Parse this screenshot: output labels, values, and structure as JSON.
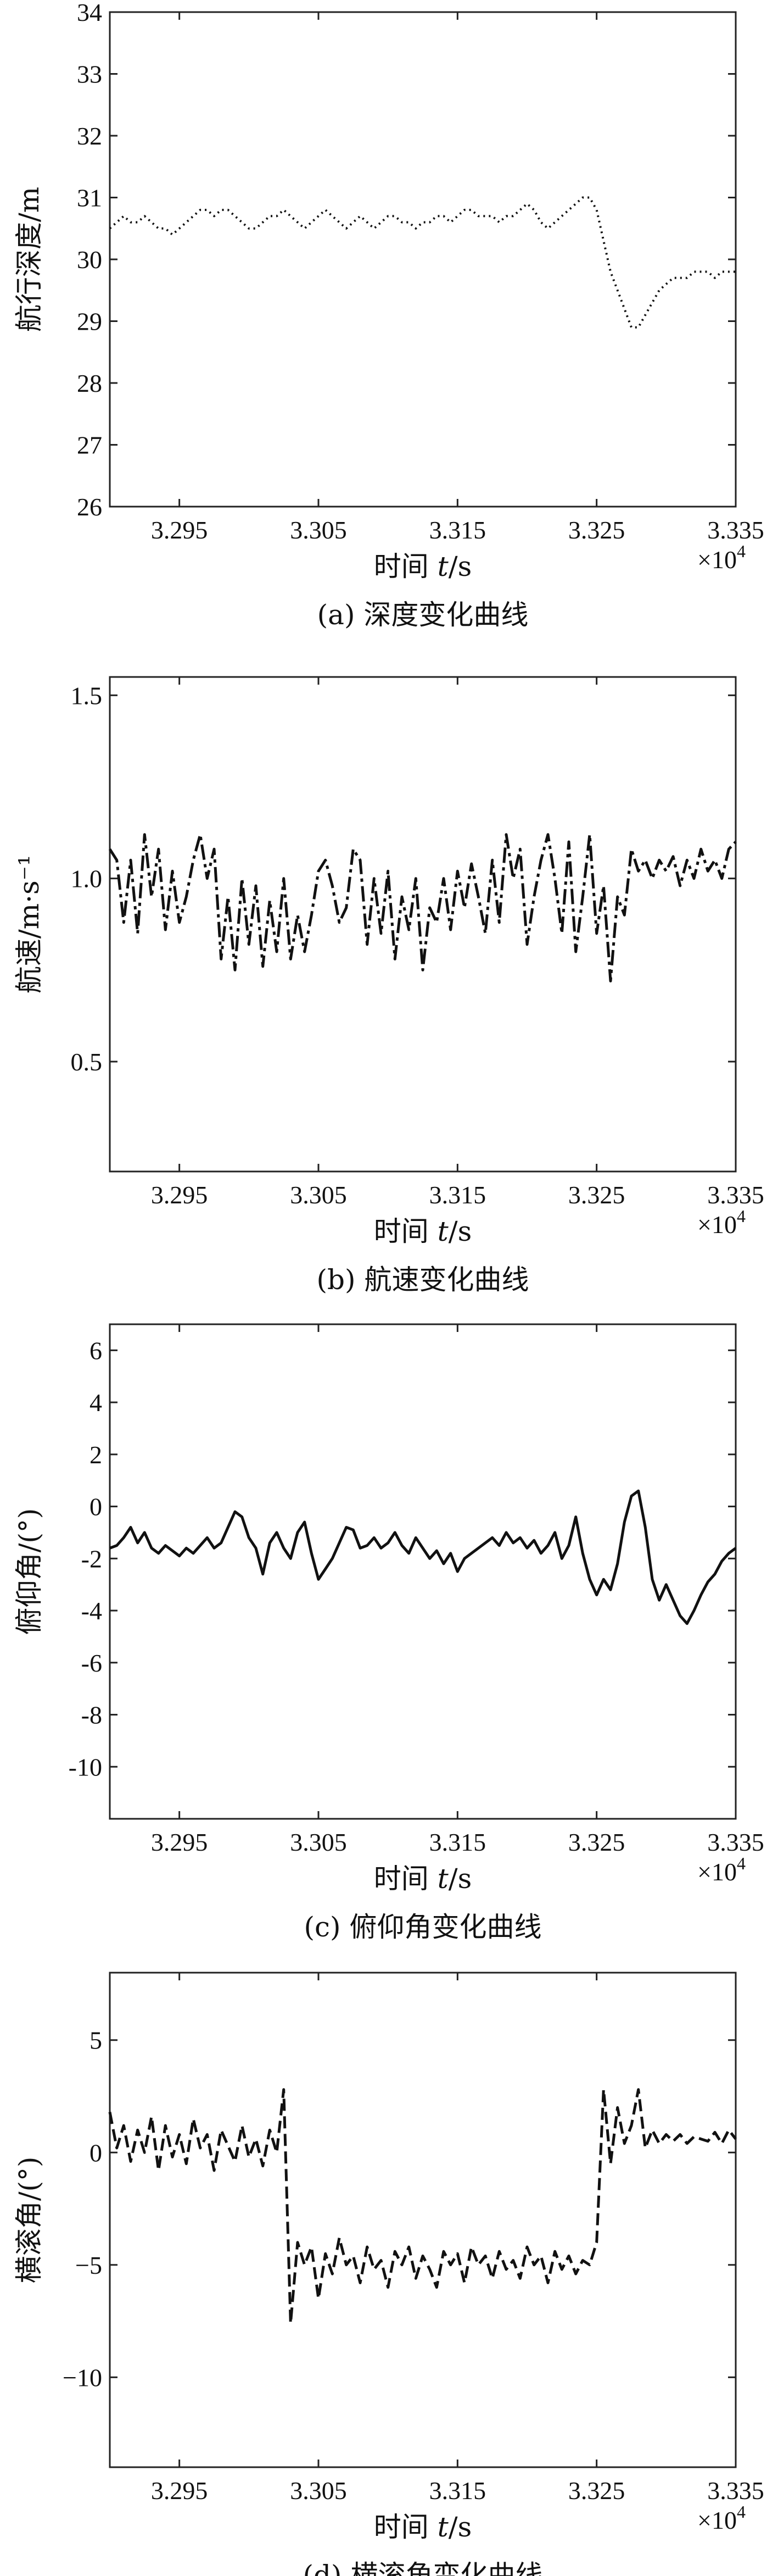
{
  "chart_data": [
    {
      "type": "line",
      "caption": "(a) 深度变化曲线",
      "xlabel": "时间 t/s",
      "xlabel_prefix": "时间 ",
      "xlabel_var": "t",
      "xlabel_unit": "/s",
      "ylabel": "航行深度/m",
      "x_multiplier": "×10",
      "x_multiplier_exp": "4",
      "xlim": [
        3.29,
        3.335
      ],
      "ylim": [
        26,
        34
      ],
      "xticks": [
        3.295,
        3.305,
        3.315,
        3.325,
        3.335
      ],
      "xtick_labels": [
        "3.295",
        "3.305",
        "3.315",
        "3.325",
        "3.335"
      ],
      "yticks": [
        26,
        27,
        28,
        29,
        30,
        31,
        32,
        33,
        34
      ],
      "ytick_labels": [
        "26",
        "27",
        "28",
        "29",
        "30",
        "31",
        "32",
        "33",
        "34"
      ],
      "line_style": "dotted",
      "series": [
        {
          "x": [
            3.29,
            3.2905,
            3.291,
            3.2915,
            3.292,
            3.2925,
            3.293,
            3.2935,
            3.294,
            3.2945,
            3.295,
            3.2955,
            3.296,
            3.2965,
            3.297,
            3.2975,
            3.298,
            3.2985,
            3.299,
            3.2995,
            3.3,
            3.3005,
            3.301,
            3.3015,
            3.302,
            3.3025,
            3.303,
            3.3035,
            3.304,
            3.3045,
            3.305,
            3.3055,
            3.306,
            3.3065,
            3.307,
            3.3075,
            3.308,
            3.3085,
            3.309,
            3.3095,
            3.31,
            3.3105,
            3.311,
            3.3115,
            3.312,
            3.3125,
            3.313,
            3.3135,
            3.314,
            3.3145,
            3.315,
            3.3155,
            3.316,
            3.3165,
            3.317,
            3.3175,
            3.318,
            3.3185,
            3.319,
            3.3195,
            3.32,
            3.3205,
            3.321,
            3.3215,
            3.322,
            3.3225,
            3.323,
            3.3235,
            3.324,
            3.3245,
            3.325,
            3.3255,
            3.326,
            3.3265,
            3.327,
            3.3275,
            3.328,
            3.3285,
            3.329,
            3.3295,
            3.33,
            3.3305,
            3.331,
            3.3315,
            3.332,
            3.3325,
            3.333,
            3.3335,
            3.334,
            3.3345,
            3.335
          ],
          "y": [
            30.5,
            30.6,
            30.7,
            30.6,
            30.6,
            30.7,
            30.6,
            30.5,
            30.5,
            30.4,
            30.5,
            30.6,
            30.7,
            30.8,
            30.8,
            30.7,
            30.8,
            30.8,
            30.7,
            30.6,
            30.5,
            30.5,
            30.6,
            30.7,
            30.7,
            30.8,
            30.7,
            30.6,
            30.5,
            30.6,
            30.7,
            30.8,
            30.7,
            30.6,
            30.5,
            30.6,
            30.7,
            30.6,
            30.5,
            30.6,
            30.7,
            30.7,
            30.6,
            30.6,
            30.5,
            30.6,
            30.6,
            30.7,
            30.7,
            30.6,
            30.7,
            30.8,
            30.8,
            30.7,
            30.7,
            30.7,
            30.6,
            30.7,
            30.7,
            30.8,
            30.9,
            30.8,
            30.6,
            30.5,
            30.6,
            30.7,
            30.8,
            30.9,
            31.0,
            31.0,
            30.8,
            30.3,
            29.8,
            29.5,
            29.2,
            28.9,
            28.9,
            29.1,
            29.3,
            29.5,
            29.6,
            29.7,
            29.7,
            29.7,
            29.8,
            29.8,
            29.8,
            29.7,
            29.8,
            29.8,
            29.8
          ]
        }
      ]
    },
    {
      "type": "line",
      "caption": "(b) 航速变化曲线",
      "xlabel": "时间 t/s",
      "xlabel_prefix": "时间 ",
      "xlabel_var": "t",
      "xlabel_unit": "/s",
      "ylabel": "航速/m·s⁻¹",
      "x_multiplier": "×10",
      "x_multiplier_exp": "4",
      "xlim": [
        3.29,
        3.335
      ],
      "ylim": [
        0.2,
        1.55
      ],
      "xticks": [
        3.295,
        3.305,
        3.315,
        3.325,
        3.335
      ],
      "xtick_labels": [
        "3.295",
        "3.305",
        "3.315",
        "3.325",
        "3.335"
      ],
      "yticks": [
        0.5,
        1.0,
        1.5
      ],
      "ytick_labels": [
        "0.5",
        "1.0",
        "1.5"
      ],
      "line_style": "dashdot",
      "series": [
        {
          "x": [
            3.29,
            3.2905,
            3.291,
            3.2915,
            3.292,
            3.2925,
            3.293,
            3.2935,
            3.294,
            3.2945,
            3.295,
            3.2955,
            3.296,
            3.2965,
            3.297,
            3.2975,
            3.298,
            3.2985,
            3.299,
            3.2995,
            3.3,
            3.3005,
            3.301,
            3.3015,
            3.302,
            3.3025,
            3.303,
            3.3035,
            3.304,
            3.3045,
            3.305,
            3.3055,
            3.306,
            3.3065,
            3.307,
            3.3075,
            3.308,
            3.3085,
            3.309,
            3.3095,
            3.31,
            3.3105,
            3.311,
            3.3115,
            3.312,
            3.3125,
            3.313,
            3.3135,
            3.314,
            3.3145,
            3.315,
            3.3155,
            3.316,
            3.3165,
            3.317,
            3.3175,
            3.318,
            3.3185,
            3.319,
            3.3195,
            3.32,
            3.3205,
            3.321,
            3.3215,
            3.322,
            3.3225,
            3.323,
            3.3235,
            3.324,
            3.3245,
            3.325,
            3.3255,
            3.326,
            3.3265,
            3.327,
            3.3275,
            3.328,
            3.3285,
            3.329,
            3.3295,
            3.33,
            3.3305,
            3.331,
            3.3315,
            3.332,
            3.3325,
            3.333,
            3.3335,
            3.334,
            3.3345,
            3.335
          ],
          "y": [
            1.08,
            1.05,
            0.88,
            1.05,
            0.85,
            1.12,
            0.95,
            1.08,
            0.86,
            1.02,
            0.88,
            0.95,
            1.05,
            1.12,
            1.0,
            1.08,
            0.78,
            0.95,
            0.75,
            1.0,
            0.82,
            0.98,
            0.76,
            0.94,
            0.8,
            1.0,
            0.78,
            0.9,
            0.8,
            0.9,
            1.02,
            1.05,
            0.98,
            0.88,
            0.92,
            1.08,
            1.05,
            0.82,
            1.0,
            0.85,
            1.02,
            0.78,
            0.95,
            0.86,
            1.0,
            0.75,
            0.92,
            0.88,
            1.0,
            0.86,
            1.02,
            0.92,
            1.04,
            0.95,
            0.85,
            1.05,
            0.88,
            1.12,
            1.0,
            1.08,
            0.82,
            0.95,
            1.05,
            1.12,
            1.0,
            0.85,
            1.1,
            0.8,
            0.95,
            1.12,
            0.85,
            0.98,
            0.72,
            0.95,
            0.9,
            1.08,
            1.02,
            1.05,
            1.0,
            1.05,
            1.02,
            1.06,
            0.98,
            1.05,
            1.0,
            1.08,
            1.02,
            1.05,
            1.0,
            1.08,
            1.1
          ]
        }
      ]
    },
    {
      "type": "line",
      "caption": "(c) 俯仰角变化曲线",
      "xlabel": "时间 t/s",
      "xlabel_prefix": "时间 ",
      "xlabel_var": "t",
      "xlabel_unit": "/s",
      "ylabel": "俯仰角/(°)",
      "x_multiplier": "×10",
      "x_multiplier_exp": "4",
      "xlim": [
        3.29,
        3.335
      ],
      "ylim": [
        -12,
        7
      ],
      "xticks": [
        3.295,
        3.305,
        3.315,
        3.325,
        3.335
      ],
      "xtick_labels": [
        "3.295",
        "3.305",
        "3.315",
        "3.325",
        "3.335"
      ],
      "yticks": [
        -10,
        -8,
        -6,
        -4,
        -2,
        0,
        2,
        4,
        6
      ],
      "ytick_labels": [
        "-10",
        "-8",
        "-6",
        "-4",
        "-2",
        "0",
        "2",
        "4",
        "6"
      ],
      "line_style": "solid",
      "series": [
        {
          "x": [
            3.29,
            3.2905,
            3.291,
            3.2915,
            3.292,
            3.2925,
            3.293,
            3.2935,
            3.294,
            3.2945,
            3.295,
            3.2955,
            3.296,
            3.2965,
            3.297,
            3.2975,
            3.298,
            3.2985,
            3.299,
            3.2995,
            3.3,
            3.3005,
            3.301,
            3.3015,
            3.302,
            3.3025,
            3.303,
            3.3035,
            3.304,
            3.3045,
            3.305,
            3.3055,
            3.306,
            3.3065,
            3.307,
            3.3075,
            3.308,
            3.3085,
            3.309,
            3.3095,
            3.31,
            3.3105,
            3.311,
            3.3115,
            3.312,
            3.3125,
            3.313,
            3.3135,
            3.314,
            3.3145,
            3.315,
            3.3155,
            3.316,
            3.3165,
            3.317,
            3.3175,
            3.318,
            3.3185,
            3.319,
            3.3195,
            3.32,
            3.3205,
            3.321,
            3.3215,
            3.322,
            3.3225,
            3.323,
            3.3235,
            3.324,
            3.3245,
            3.325,
            3.3255,
            3.326,
            3.3265,
            3.327,
            3.3275,
            3.328,
            3.3285,
            3.329,
            3.3295,
            3.33,
            3.3305,
            3.331,
            3.3315,
            3.332,
            3.3325,
            3.333,
            3.3335,
            3.334,
            3.3345,
            3.335
          ],
          "y": [
            -1.6,
            -1.5,
            -1.2,
            -0.8,
            -1.4,
            -1.0,
            -1.6,
            -1.8,
            -1.5,
            -1.7,
            -1.9,
            -1.6,
            -1.8,
            -1.5,
            -1.2,
            -1.6,
            -1.4,
            -0.8,
            -0.2,
            -0.4,
            -1.2,
            -1.6,
            -2.6,
            -1.4,
            -1.0,
            -1.6,
            -2.0,
            -1.0,
            -0.6,
            -1.8,
            -2.8,
            -2.4,
            -2.0,
            -1.4,
            -0.8,
            -0.9,
            -1.6,
            -1.5,
            -1.2,
            -1.6,
            -1.4,
            -1.0,
            -1.5,
            -1.8,
            -1.2,
            -1.6,
            -2.0,
            -1.7,
            -2.2,
            -1.8,
            -2.5,
            -2.0,
            -1.8,
            -1.6,
            -1.4,
            -1.2,
            -1.5,
            -1.0,
            -1.4,
            -1.2,
            -1.6,
            -1.3,
            -1.8,
            -1.5,
            -1.0,
            -2.0,
            -1.5,
            -0.4,
            -1.8,
            -2.8,
            -3.4,
            -2.8,
            -3.2,
            -2.2,
            -0.6,
            0.4,
            0.6,
            -0.8,
            -2.8,
            -3.6,
            -3.0,
            -3.6,
            -4.2,
            -4.5,
            -4.0,
            -3.4,
            -2.9,
            -2.6,
            -2.1,
            -1.8,
            -1.6
          ]
        }
      ]
    },
    {
      "type": "line",
      "caption": "(d) 横滚角变化曲线",
      "xlabel": "时间 t/s",
      "xlabel_prefix": "时间 ",
      "xlabel_var": "t",
      "xlabel_unit": "/s",
      "ylabel": "横滚角/(°)",
      "x_multiplier": "×10",
      "x_multiplier_exp": "4",
      "xlim": [
        3.29,
        3.335
      ],
      "ylim": [
        -14,
        8
      ],
      "xticks": [
        3.295,
        3.305,
        3.315,
        3.325,
        3.335
      ],
      "xtick_labels": [
        "3.295",
        "3.305",
        "3.315",
        "3.325",
        "3.335"
      ],
      "yticks": [
        -10,
        -5,
        0,
        5
      ],
      "ytick_labels": [
        "−10",
        "−5",
        "0",
        "5"
      ],
      "line_style": "dashed",
      "series": [
        {
          "x": [
            3.29,
            3.2905,
            3.291,
            3.2915,
            3.292,
            3.2925,
            3.293,
            3.2935,
            3.294,
            3.2945,
            3.295,
            3.2955,
            3.296,
            3.2965,
            3.297,
            3.2975,
            3.298,
            3.2985,
            3.299,
            3.2995,
            3.3,
            3.3005,
            3.301,
            3.3015,
            3.302,
            3.3025,
            3.303,
            3.3035,
            3.304,
            3.3045,
            3.305,
            3.3055,
            3.306,
            3.3065,
            3.307,
            3.3075,
            3.308,
            3.3085,
            3.309,
            3.3095,
            3.31,
            3.3105,
            3.311,
            3.3115,
            3.312,
            3.3125,
            3.313,
            3.3135,
            3.314,
            3.3145,
            3.315,
            3.3155,
            3.316,
            3.3165,
            3.317,
            3.3175,
            3.318,
            3.3185,
            3.319,
            3.3195,
            3.32,
            3.3205,
            3.321,
            3.3215,
            3.322,
            3.3225,
            3.323,
            3.3235,
            3.324,
            3.3245,
            3.325,
            3.3255,
            3.326,
            3.3265,
            3.327,
            3.3275,
            3.328,
            3.3285,
            3.329,
            3.3295,
            3.33,
            3.3305,
            3.331,
            3.3315,
            3.332,
            3.3325,
            3.333,
            3.3335,
            3.334,
            3.3345,
            3.335
          ],
          "y": [
            1.8,
            0.2,
            1.2,
            -0.4,
            1.0,
            0.0,
            1.6,
            -0.8,
            1.2,
            -0.2,
            0.8,
            -0.5,
            1.5,
            0.2,
            0.8,
            -0.8,
            1.0,
            0.3,
            -0.4,
            1.2,
            -0.2,
            0.6,
            -0.6,
            1.0,
            0.0,
            2.8,
            -7.6,
            -4.0,
            -5.0,
            -4.2,
            -6.5,
            -4.5,
            -5.4,
            -3.8,
            -5.0,
            -4.6,
            -5.8,
            -4.2,
            -5.2,
            -4.8,
            -6.0,
            -4.4,
            -5.0,
            -4.2,
            -5.6,
            -4.6,
            -5.2,
            -6.0,
            -4.4,
            -5.0,
            -4.5,
            -5.8,
            -4.2,
            -5.0,
            -4.6,
            -5.6,
            -4.4,
            -5.2,
            -4.8,
            -5.6,
            -4.2,
            -5.0,
            -4.6,
            -5.8,
            -4.4,
            -5.2,
            -4.6,
            -5.4,
            -4.8,
            -5.0,
            -4.0,
            2.8,
            -0.5,
            2.0,
            0.4,
            1.2,
            2.8,
            0.2,
            1.0,
            0.4,
            0.8,
            0.5,
            0.8,
            0.4,
            0.7,
            0.6,
            0.5,
            0.9,
            0.4,
            1.0,
            0.6
          ]
        }
      ]
    }
  ]
}
